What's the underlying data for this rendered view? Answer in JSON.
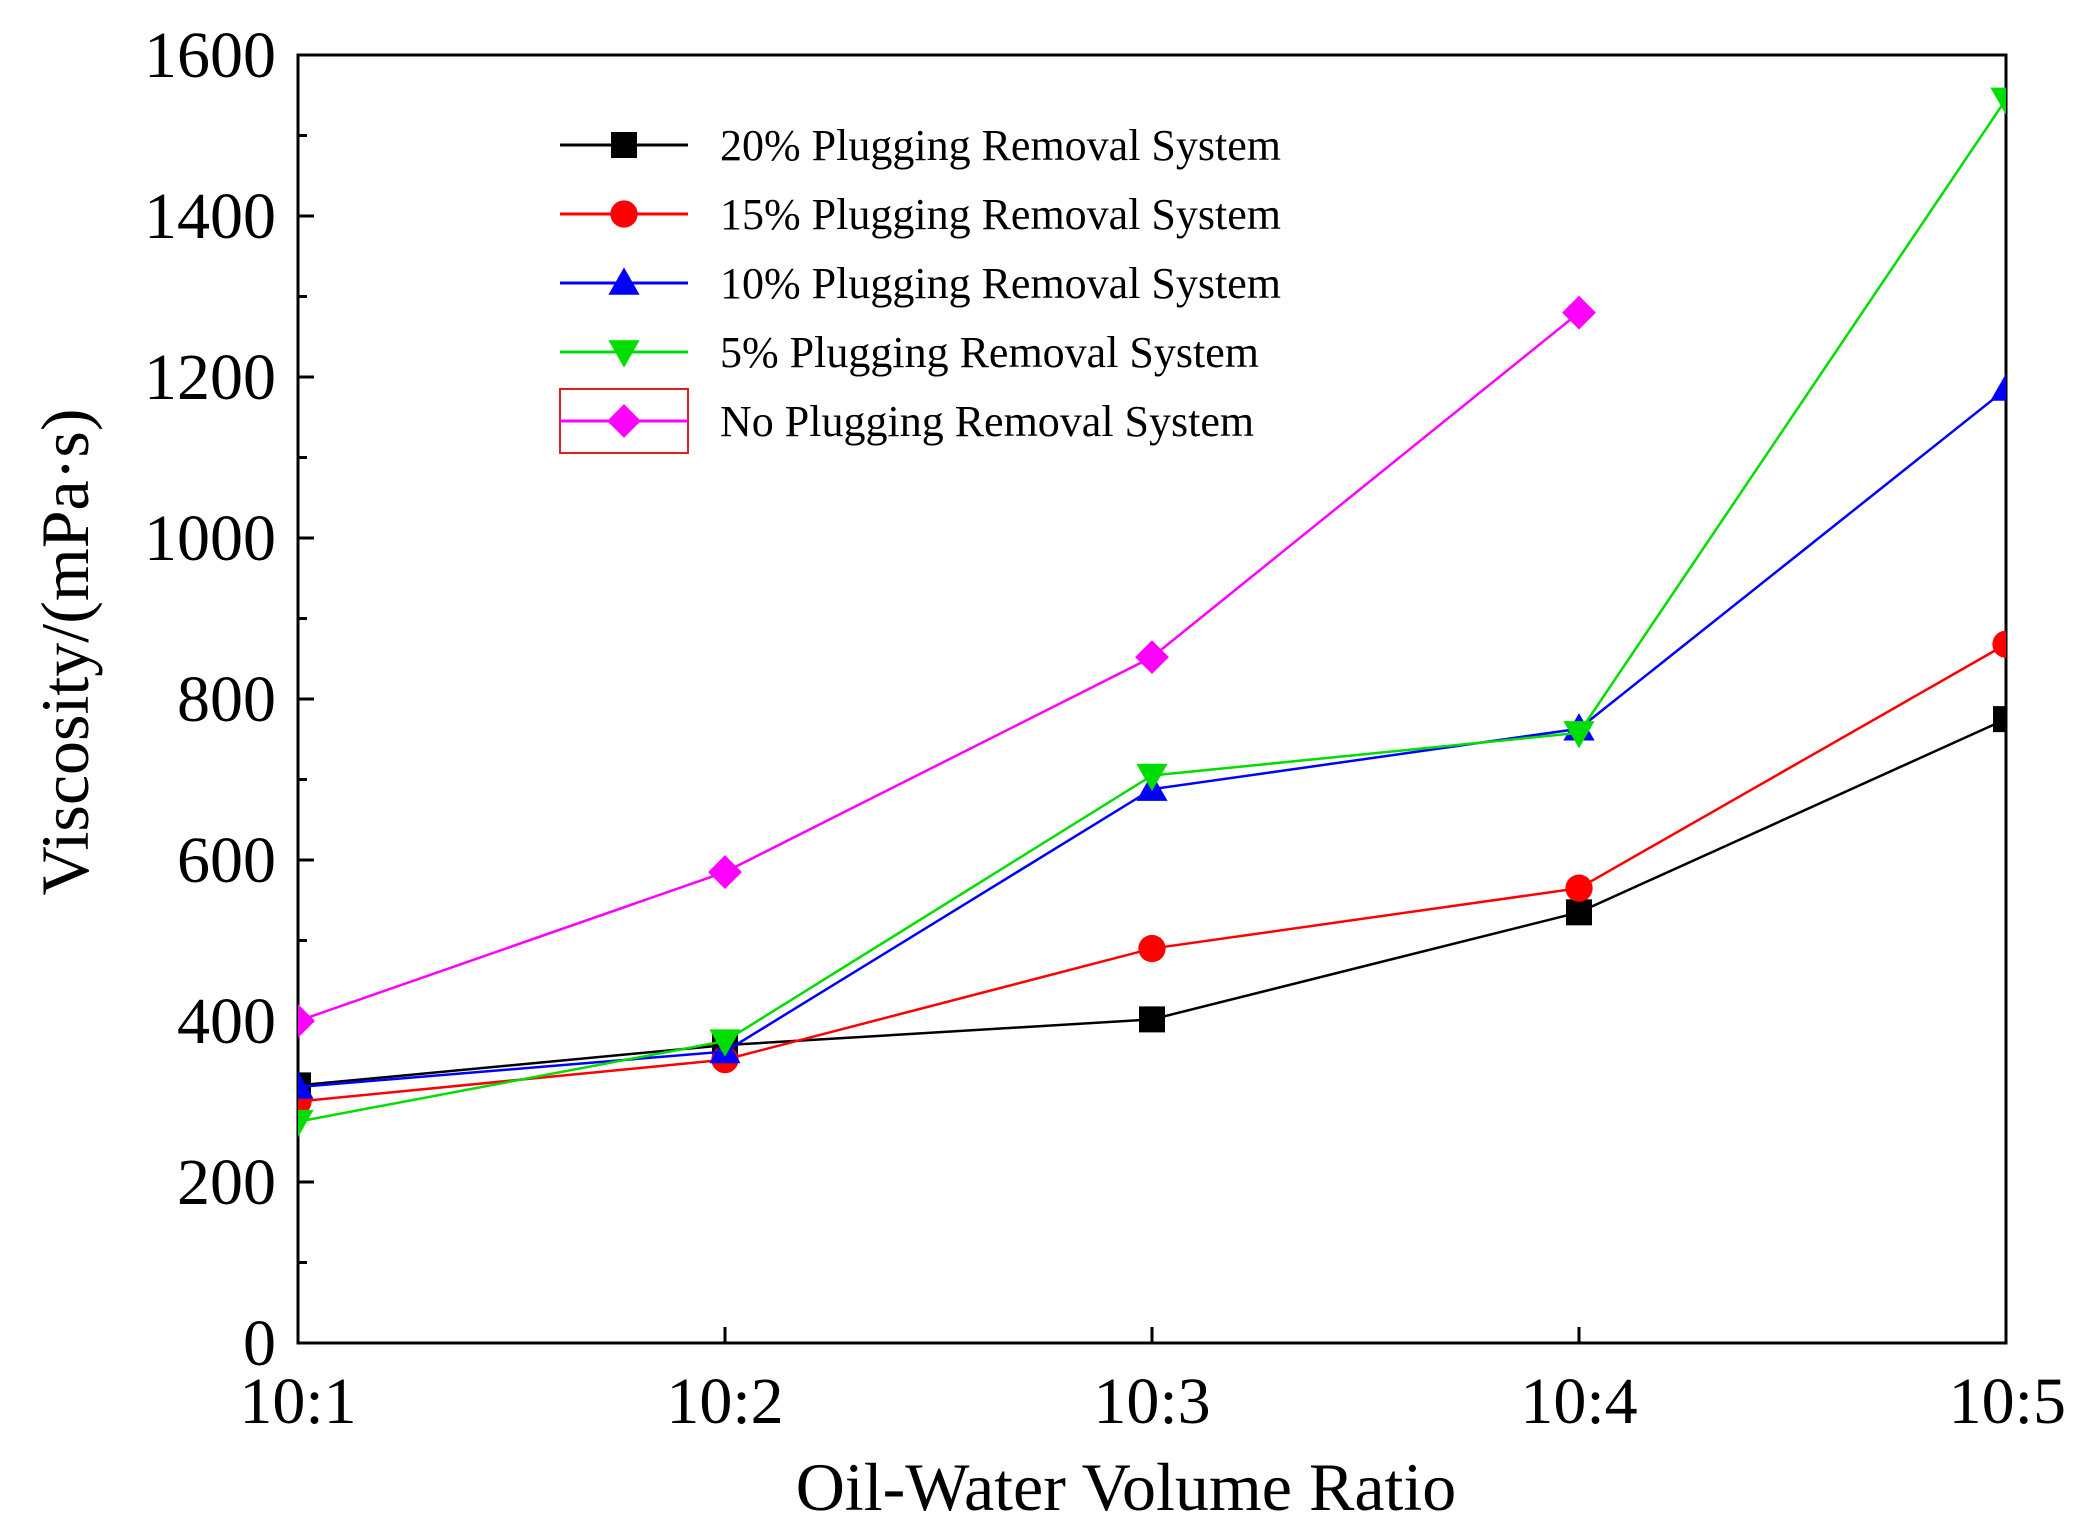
{
  "chart_data": {
    "type": "line",
    "title": "",
    "xlabel": "Oil-Water Volume Ratio",
    "ylabel": "Viscosity/(mPa·s)",
    "categories": [
      "10:1",
      "10:2",
      "10:3",
      "10:4",
      "10:5"
    ],
    "ylim": [
      0,
      1600
    ],
    "yticks": [
      0,
      200,
      400,
      600,
      800,
      1000,
      1200,
      1400,
      1600
    ],
    "ytick_labels": [
      "0",
      "200",
      "400",
      "600",
      "800",
      "1000",
      "1200",
      "1400",
      "1600"
    ],
    "grid": false,
    "legend_position": "top-left",
    "series": [
      {
        "name": "20% Plugging Removal System",
        "color": "#000000",
        "marker": "square",
        "values": [
          320,
          370,
          402,
          535,
          775
        ]
      },
      {
        "name": "15% Plugging Removal System",
        "color": "#ff0000",
        "marker": "circle",
        "values": [
          300,
          352,
          490,
          565,
          868
        ]
      },
      {
        "name": "10% Plugging Removal System",
        "color": "#0000ff",
        "marker": "triangle-up",
        "values": [
          318,
          362,
          688,
          763,
          1185
        ]
      },
      {
        "name": "5% Plugging Removal System",
        "color": "#00dd00",
        "marker": "triangle-down",
        "values": [
          275,
          375,
          705,
          758,
          1545
        ]
      },
      {
        "name": "No Plugging Removal System",
        "color": "#ff00ff",
        "marker": "diamond",
        "values": [
          400,
          585,
          852,
          1280,
          null
        ]
      }
    ]
  }
}
